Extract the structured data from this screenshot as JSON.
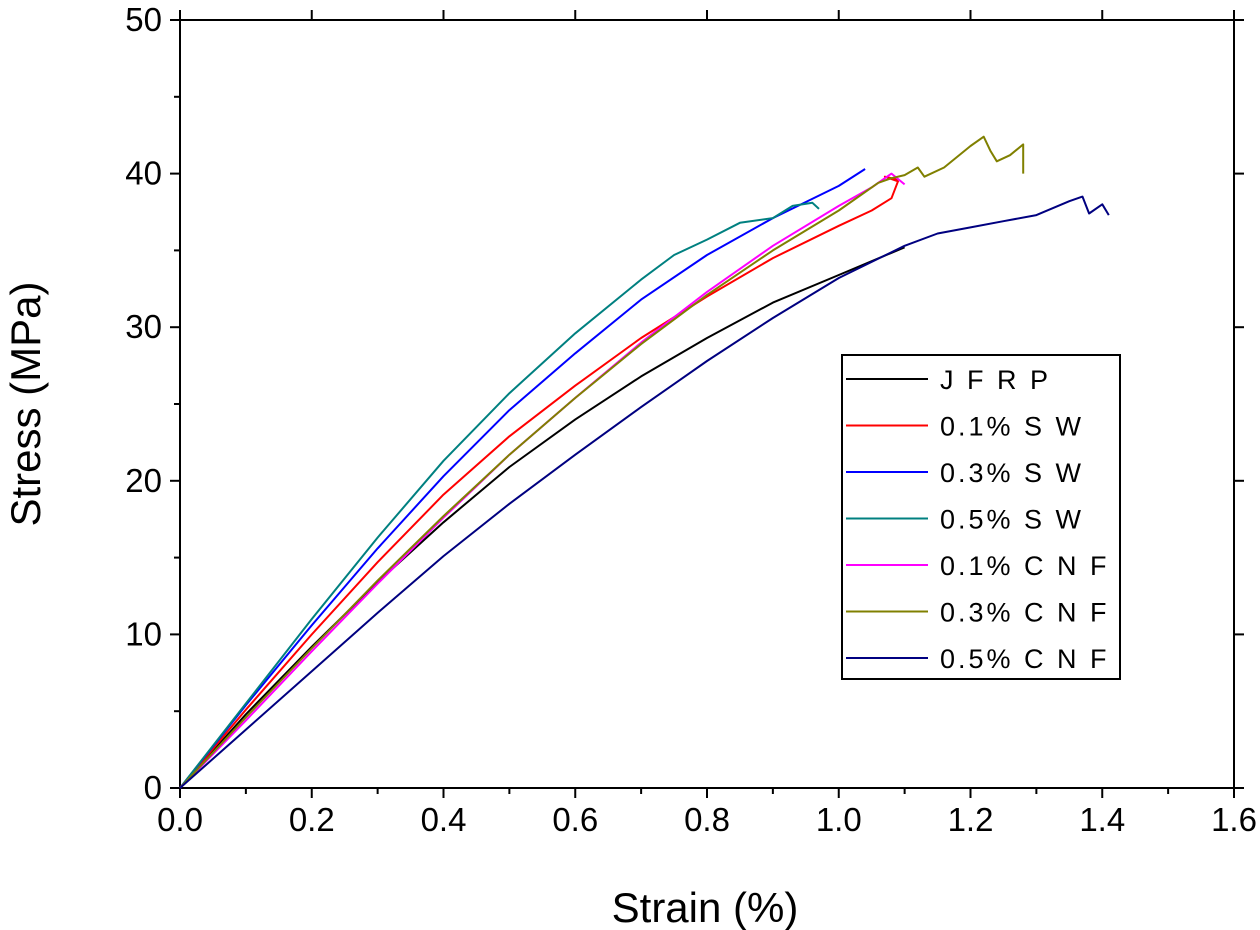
{
  "chart_data": {
    "type": "line",
    "title": "",
    "xlabel": "Strain (%)",
    "ylabel": "Stress (MPa)",
    "xlim": [
      0.0,
      1.6
    ],
    "ylim": [
      0,
      50
    ],
    "x_ticks": [
      "0.0",
      "0.2",
      "0.4",
      "0.6",
      "0.8",
      "1.0",
      "1.2",
      "1.4",
      "1.6"
    ],
    "y_ticks": [
      "0",
      "10",
      "20",
      "30",
      "40",
      "50"
    ],
    "grid": false,
    "legend_position": "center-right",
    "series": [
      {
        "name": "J F R P",
        "color": "#000000",
        "points": [
          [
            0,
            0
          ],
          [
            0.1,
            4.8
          ],
          [
            0.2,
            9.2
          ],
          [
            0.3,
            13.4
          ],
          [
            0.4,
            17.3
          ],
          [
            0.5,
            20.9
          ],
          [
            0.6,
            24.0
          ],
          [
            0.7,
            26.8
          ],
          [
            0.8,
            29.3
          ],
          [
            0.9,
            31.6
          ],
          [
            1.0,
            33.4
          ],
          [
            1.05,
            34.3
          ],
          [
            1.1,
            35.2
          ]
        ]
      },
      {
        "name": "0.1% S W",
        "color": "#ff0000",
        "points": [
          [
            0,
            0
          ],
          [
            0.1,
            5.1
          ],
          [
            0.2,
            10.0
          ],
          [
            0.3,
            14.7
          ],
          [
            0.4,
            19.1
          ],
          [
            0.5,
            22.9
          ],
          [
            0.6,
            26.2
          ],
          [
            0.7,
            29.3
          ],
          [
            0.8,
            32.0
          ],
          [
            0.9,
            34.5
          ],
          [
            1.0,
            36.6
          ],
          [
            1.05,
            37.6
          ],
          [
            1.08,
            38.4
          ],
          [
            1.09,
            39.5
          ],
          [
            1.07,
            39.8
          ],
          [
            1.09,
            39.6
          ]
        ]
      },
      {
        "name": "0.3% S W",
        "color": "#0000ff",
        "points": [
          [
            0,
            0
          ],
          [
            0.1,
            5.4
          ],
          [
            0.2,
            10.6
          ],
          [
            0.3,
            15.6
          ],
          [
            0.4,
            20.3
          ],
          [
            0.5,
            24.6
          ],
          [
            0.6,
            28.3
          ],
          [
            0.7,
            31.8
          ],
          [
            0.8,
            34.7
          ],
          [
            0.9,
            37.1
          ],
          [
            1.0,
            39.2
          ],
          [
            1.04,
            40.3
          ]
        ]
      },
      {
        "name": "0.5% S W",
        "color": "#008080",
        "points": [
          [
            0,
            0
          ],
          [
            0.1,
            5.5
          ],
          [
            0.2,
            11.0
          ],
          [
            0.3,
            16.3
          ],
          [
            0.4,
            21.3
          ],
          [
            0.5,
            25.7
          ],
          [
            0.6,
            29.6
          ],
          [
            0.7,
            33.1
          ],
          [
            0.75,
            34.7
          ],
          [
            0.8,
            35.7
          ],
          [
            0.85,
            36.8
          ],
          [
            0.9,
            37.1
          ],
          [
            0.93,
            37.9
          ],
          [
            0.96,
            38.1
          ],
          [
            0.97,
            37.7
          ]
        ]
      },
      {
        "name": "0.1% C N F",
        "color": "#ff00ff",
        "points": [
          [
            0,
            0
          ],
          [
            0.1,
            4.4
          ],
          [
            0.2,
            8.9
          ],
          [
            0.3,
            13.3
          ],
          [
            0.4,
            17.6
          ],
          [
            0.5,
            21.7
          ],
          [
            0.6,
            25.4
          ],
          [
            0.7,
            29.0
          ],
          [
            0.8,
            32.3
          ],
          [
            0.9,
            35.3
          ],
          [
            1.0,
            37.9
          ],
          [
            1.05,
            39.1
          ],
          [
            1.08,
            40.0
          ],
          [
            1.1,
            39.3
          ]
        ]
      },
      {
        "name": "0.3% C N F",
        "color": "#808000",
        "points": [
          [
            0,
            0
          ],
          [
            0.1,
            4.6
          ],
          [
            0.2,
            9.1
          ],
          [
            0.3,
            13.5
          ],
          [
            0.4,
            17.7
          ],
          [
            0.5,
            21.7
          ],
          [
            0.6,
            25.4
          ],
          [
            0.7,
            28.9
          ],
          [
            0.8,
            32.1
          ],
          [
            0.9,
            35.0
          ],
          [
            1.0,
            37.6
          ],
          [
            1.06,
            39.4
          ],
          [
            1.08,
            39.7
          ],
          [
            1.1,
            39.9
          ],
          [
            1.12,
            40.4
          ],
          [
            1.13,
            39.8
          ],
          [
            1.16,
            40.4
          ],
          [
            1.2,
            41.8
          ],
          [
            1.22,
            42.4
          ],
          [
            1.23,
            41.5
          ],
          [
            1.24,
            40.8
          ],
          [
            1.26,
            41.2
          ],
          [
            1.28,
            41.9
          ],
          [
            1.28,
            40.0
          ]
        ]
      },
      {
        "name": "0.5% C N F",
        "color": "#000080",
        "points": [
          [
            0,
            0
          ],
          [
            0.1,
            3.8
          ],
          [
            0.2,
            7.6
          ],
          [
            0.3,
            11.4
          ],
          [
            0.4,
            15.1
          ],
          [
            0.5,
            18.5
          ],
          [
            0.6,
            21.7
          ],
          [
            0.7,
            24.8
          ],
          [
            0.8,
            27.8
          ],
          [
            0.9,
            30.6
          ],
          [
            1.0,
            33.2
          ],
          [
            1.1,
            35.3
          ],
          [
            1.15,
            36.1
          ],
          [
            1.2,
            36.5
          ],
          [
            1.25,
            36.9
          ],
          [
            1.3,
            37.3
          ],
          [
            1.35,
            38.2
          ],
          [
            1.37,
            38.5
          ],
          [
            1.38,
            37.4
          ],
          [
            1.4,
            38.0
          ],
          [
            1.41,
            37.3
          ]
        ]
      }
    ]
  }
}
